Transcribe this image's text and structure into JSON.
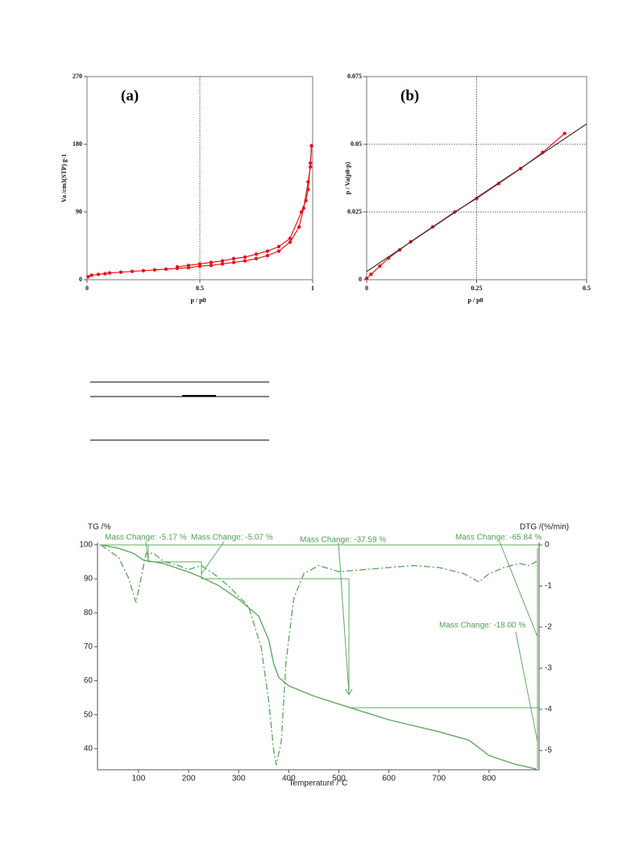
{
  "chart_data": [
    {
      "type": "line",
      "panel_label": "(a)",
      "x_label": "p / p0",
      "y_label": "Va /cm3(STP) g-1",
      "xlim": [
        0,
        1
      ],
      "ylim": [
        0,
        270
      ],
      "xticks": [
        0,
        0.5,
        1
      ],
      "yticks": [
        0,
        90,
        180,
        270
      ],
      "grid": "x",
      "series": [
        {
          "color": "#e8141c",
          "marker": true,
          "x": [
            0.005,
            0.02,
            0.05,
            0.08,
            0.1,
            0.15,
            0.2,
            0.25,
            0.3,
            0.35,
            0.4,
            0.45,
            0.5,
            0.55,
            0.6,
            0.65,
            0.7,
            0.75,
            0.8,
            0.85,
            0.9,
            0.94,
            0.96,
            0.98,
            0.99,
            0.995
          ],
          "values": [
            4,
            6,
            7,
            8,
            9,
            10,
            11,
            12,
            13,
            14,
            15,
            16,
            18,
            19,
            21,
            23,
            25,
            28,
            32,
            38,
            50,
            70,
            95,
            130,
            150,
            178
          ]
        },
        {
          "color": "#e8141c",
          "marker": true,
          "x": [
            0.995,
            0.99,
            0.98,
            0.97,
            0.95,
            0.9,
            0.85,
            0.8,
            0.75,
            0.7,
            0.65,
            0.6,
            0.55,
            0.5,
            0.45,
            0.4
          ],
          "values": [
            178,
            155,
            120,
            105,
            90,
            55,
            44,
            38,
            34,
            30,
            28,
            25,
            23,
            21,
            19,
            17
          ]
        }
      ]
    },
    {
      "type": "line",
      "panel_label": "(b)",
      "x_label": "p / p0",
      "y_label": "p / Va(p0-p)",
      "xlim": [
        0,
        0.5
      ],
      "ylim": [
        0,
        0.075
      ],
      "xticks": [
        0,
        0.25,
        0.5
      ],
      "yticks": [
        0,
        0.025,
        0.05,
        0.075
      ],
      "grid": "both",
      "series": [
        {
          "color": "#e8141c",
          "marker": true,
          "x": [
            0,
            0.01,
            0.03,
            0.05,
            0.075,
            0.1,
            0.15,
            0.2,
            0.25,
            0.3,
            0.35,
            0.4,
            0.45
          ],
          "values": [
            0.0005,
            0.002,
            0.005,
            0.008,
            0.011,
            0.014,
            0.0195,
            0.025,
            0.03,
            0.0355,
            0.041,
            0.047,
            0.054
          ]
        },
        {
          "color": "#333333",
          "marker": false,
          "x": [
            0,
            0.5
          ],
          "values": [
            0.003,
            0.0575
          ]
        }
      ]
    },
    {
      "type": "line",
      "x_label": "Temperature /°C",
      "y_label": "TG /%",
      "y2_label": "DTG /(%/min)",
      "xlim": [
        18,
        900
      ],
      "ylim": [
        33.8,
        100.7
      ],
      "y2lim": [
        -5.47,
        0.06
      ],
      "xticks": [
        100,
        200,
        300,
        400,
        500,
        600,
        700,
        800
      ],
      "yticks": [
        40,
        50,
        60,
        70,
        80,
        90,
        100
      ],
      "y2ticks": [
        0,
        -1,
        -2,
        -3,
        -4,
        -5
      ],
      "grid": "none",
      "annotations": [
        "Mass Change: -5.17 %",
        "Mass Change: -5.07 %",
        "Mass Change: -37.59 %",
        "Mass Change: -65.84 %",
        "Mass Change: -18.00 %"
      ],
      "annotation_color": "#4f9f4f",
      "series": [
        {
          "color": "#62a862",
          "marker": false,
          "dash": "solid",
          "x": [
            25,
            60,
            90,
            110,
            150,
            200,
            225,
            260,
            300,
            340,
            360,
            370,
            380,
            400,
            450,
            520,
            600,
            700,
            760,
            800,
            850,
            895
          ],
          "values": [
            100,
            99,
            97.5,
            95.5,
            94.5,
            92,
            90.5,
            88,
            84,
            79,
            72,
            65,
            61,
            58.5,
            55.5,
            52.2,
            48.5,
            45,
            42.5,
            38,
            35.5,
            34
          ]
        },
        {
          "color": "#62a862",
          "marker": false,
          "dash": "dashdot",
          "axis": "y2",
          "x": [
            25,
            60,
            80,
            95,
            105,
            115,
            130,
            150,
            180,
            200,
            225,
            250,
            280,
            320,
            345,
            360,
            370,
            375,
            385,
            395,
            410,
            430,
            460,
            500,
            550,
            600,
            650,
            700,
            750,
            780,
            800,
            830,
            860,
            880,
            895
          ],
          "values": [
            0,
            -0.3,
            -0.8,
            -1.4,
            -0.8,
            -0.2,
            -0.2,
            -0.4,
            -0.5,
            -0.6,
            -0.5,
            -0.7,
            -1.0,
            -1.5,
            -2.5,
            -3.8,
            -5.0,
            -5.35,
            -4.8,
            -2.8,
            -1.3,
            -0.7,
            -0.5,
            -0.65,
            -0.6,
            -0.55,
            -0.5,
            -0.55,
            -0.7,
            -0.9,
            -0.7,
            -0.55,
            -0.45,
            -0.5,
            -0.4
          ]
        }
      ]
    }
  ]
}
